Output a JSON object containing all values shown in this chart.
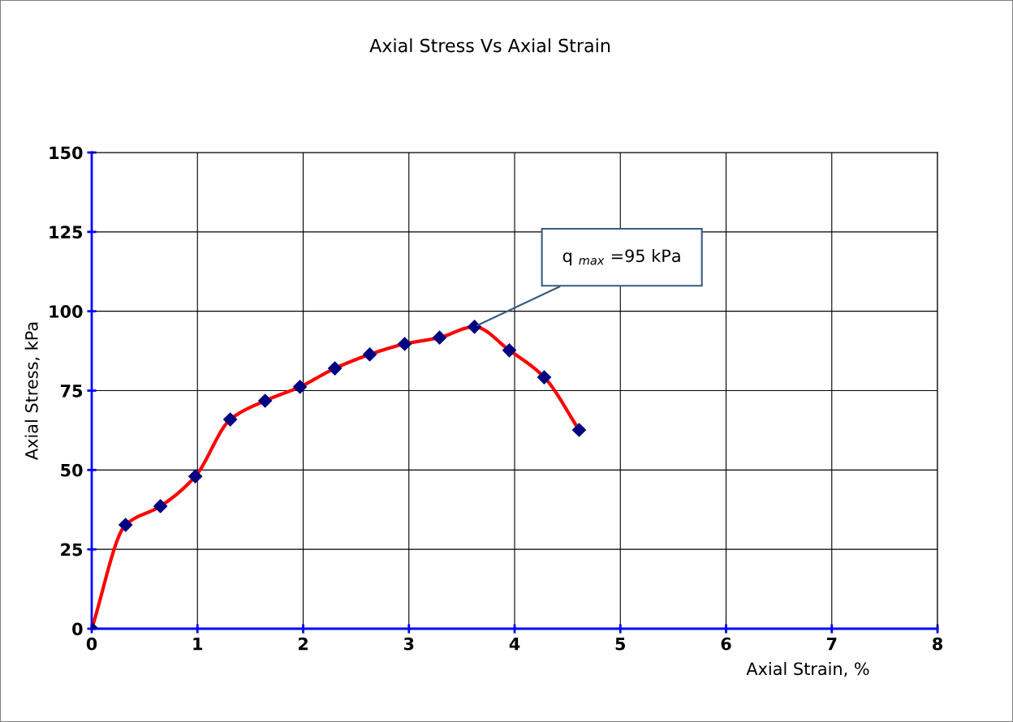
{
  "chart_data": {
    "type": "line",
    "title": "Axial Stress Vs Axial Strain",
    "xlabel": "Axial Strain, %",
    "ylabel": "Axial Stress, kPa",
    "x": [
      0,
      0.32,
      0.65,
      0.98,
      1.31,
      1.64,
      1.97,
      2.3,
      2.63,
      2.96,
      3.29,
      3.62,
      3.95,
      4.28,
      4.61
    ],
    "series": [
      {
        "color": "#ff0000",
        "values": [
          0,
          32.7,
          38.6,
          48.0,
          65.9,
          71.8,
          76.2,
          82.0,
          86.4,
          89.7,
          91.7,
          95.1,
          87.7,
          79.2,
          62.6
        ]
      }
    ],
    "marker": "diamond",
    "line_style": "solid",
    "xlim": [
      0,
      8
    ],
    "xticks": [
      0,
      1,
      2,
      3,
      4,
      5,
      6,
      7,
      8
    ],
    "ylim": [
      0,
      150
    ],
    "yticks": [
      0,
      25,
      50,
      75,
      100,
      125,
      150
    ],
    "grid": true,
    "legend": false,
    "annotations": [
      {
        "text": "q $_{max}$ =95 kPa",
        "x": 3.62,
        "y": 95.1
      }
    ]
  }
}
